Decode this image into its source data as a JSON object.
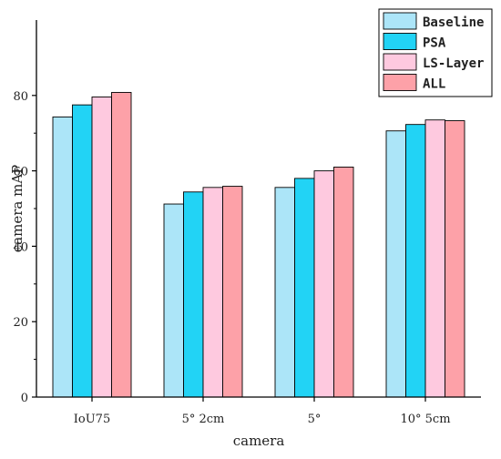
{
  "chart_data": {
    "type": "bar",
    "categories": [
      "IoU75",
      "5° 2cm",
      "5°",
      "10° 5cm"
    ],
    "series": [
      {
        "name": "Baseline",
        "color": "#ace5f8",
        "values": [
          74.3,
          51.2,
          55.6,
          70.6
        ]
      },
      {
        "name": "PSA",
        "color": "#22d3f5",
        "values": [
          77.5,
          54.4,
          58.0,
          72.3
        ]
      },
      {
        "name": "LS-Layer",
        "color": "#fec9df",
        "values": [
          79.6,
          55.6,
          60.0,
          73.5
        ]
      },
      {
        "name": "ALL",
        "color": "#fda1a8",
        "values": [
          80.8,
          55.9,
          61.0,
          73.3
        ]
      }
    ],
    "title": "",
    "xlabel": "camera",
    "ylabel": "camera mAP",
    "ylim": [
      0,
      100
    ],
    "yticks": [
      0,
      20,
      40,
      60,
      80
    ],
    "grid": false,
    "legend_position": "top-right"
  }
}
